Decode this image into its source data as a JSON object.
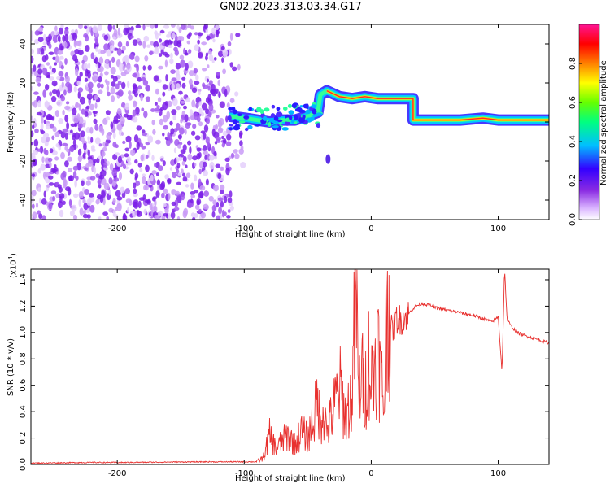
{
  "figure_title": "GN02.2023.313.03.34.G17",
  "chart_data": [
    {
      "type": "heatmap",
      "title": "GN02.2023.313.03.34.G17",
      "xlabel": "Height of straight line (km)",
      "ylabel": "Frequency (Hz)",
      "xlim": [
        -268,
        140
      ],
      "ylim": [
        -50,
        50
      ],
      "xticks": [
        -200,
        -100,
        0,
        100
      ],
      "yticks": [
        -40,
        -20,
        0,
        20,
        40
      ],
      "colorbar": {
        "label": "Normalized spectral amplitude",
        "range": [
          0,
          1
        ],
        "ticks": [
          "0.0",
          "0.2",
          "0.4",
          "0.6",
          "0.8"
        ],
        "colormap": [
          "#ffffff",
          "#d9b3ff",
          "#8a2be2",
          "#3300ff",
          "#00bfff",
          "#00ff80",
          "#66ff00",
          "#ffff00",
          "#ff8000",
          "#ff0000",
          "#ff1493"
        ]
      },
      "noise_region": {
        "x": [
          -268,
          -108
        ],
        "y": [
          -50,
          50
        ]
      },
      "ridge": [
        {
          "x": -112,
          "y": 3
        },
        {
          "x": -100,
          "y": 2
        },
        {
          "x": -90,
          "y": 1
        },
        {
          "x": -80,
          "y": 0
        },
        {
          "x": -70,
          "y": 1
        },
        {
          "x": -60,
          "y": 1
        },
        {
          "x": -50,
          "y": 3
        },
        {
          "x": -42,
          "y": 5
        },
        {
          "x": -40,
          "y": 14
        },
        {
          "x": -35,
          "y": 16
        },
        {
          "x": -25,
          "y": 13
        },
        {
          "x": -15,
          "y": 12
        },
        {
          "x": -5,
          "y": 13
        },
        {
          "x": 5,
          "y": 12
        },
        {
          "x": 15,
          "y": 12
        },
        {
          "x": 25,
          "y": 12
        },
        {
          "x": 33,
          "y": 12
        },
        {
          "x": 33,
          "y": 1
        },
        {
          "x": 50,
          "y": 1
        },
        {
          "x": 70,
          "y": 1
        },
        {
          "x": 88,
          "y": 2
        },
        {
          "x": 100,
          "y": 1
        },
        {
          "x": 120,
          "y": 1
        },
        {
          "x": 140,
          "y": 1
        }
      ]
    },
    {
      "type": "line",
      "xlabel": "Height of straight line (km)",
      "ylabel": "SNR (10 * v/v)",
      "multiplier": "(x10",
      "multiplier_exponent": "4",
      "multiplier_close": ")",
      "xlim": [
        -268,
        140
      ],
      "ylim": [
        0,
        1.48
      ],
      "xticks": [
        -200,
        -100,
        0,
        100
      ],
      "yticks": [
        0.0,
        0.2,
        0.4,
        0.6,
        0.8,
        1.0,
        1.2,
        1.4
      ],
      "series": [
        {
          "color": "#e8302e",
          "x": [
            -268,
            -250,
            -220,
            -190,
            -160,
            -130,
            -100,
            -90,
            -85,
            -80,
            -75,
            -70,
            -65,
            -60,
            -55,
            -50,
            -45,
            -42,
            -40,
            -38,
            -35,
            -30,
            -25,
            -20,
            -15,
            -12,
            -10,
            -8,
            -5,
            -2,
            0,
            5,
            10,
            13,
            15,
            18,
            20,
            25,
            30,
            35,
            40,
            45,
            50,
            60,
            70,
            80,
            90,
            95,
            100,
            103,
            105,
            107,
            110,
            115,
            120,
            130,
            140
          ],
          "y": [
            0.01,
            0.012,
            0.015,
            0.015,
            0.018,
            0.02,
            0.02,
            0.02,
            0.05,
            0.22,
            0.12,
            0.18,
            0.22,
            0.15,
            0.25,
            0.2,
            0.35,
            0.5,
            0.3,
            0.45,
            0.25,
            0.4,
            0.6,
            0.35,
            0.55,
            1.37,
            0.5,
            0.7,
            0.55,
            0.8,
            0.62,
            0.9,
            0.45,
            1.38,
            1.0,
            1.05,
            1.1,
            1.1,
            1.15,
            1.2,
            1.22,
            1.21,
            1.19,
            1.17,
            1.15,
            1.13,
            1.1,
            1.08,
            1.12,
            0.7,
            1.48,
            1.1,
            1.05,
            1.0,
            0.98,
            0.95,
            0.92
          ]
        }
      ]
    }
  ]
}
